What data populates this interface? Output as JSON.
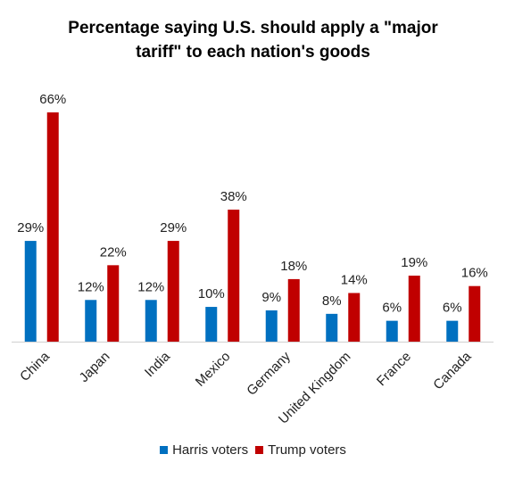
{
  "chart_data": {
    "type": "bar",
    "title_lines": [
      "Percentage saying U.S. should apply a \"major",
      "tariff\" to each nation's goods"
    ],
    "categories": [
      "China",
      "Japan",
      "India",
      "Mexico",
      "Germany",
      "United Kingdom",
      "France",
      "Canada"
    ],
    "series": [
      {
        "name": "Harris voters",
        "color": "#0070C0",
        "values": [
          29,
          12,
          12,
          10,
          9,
          8,
          6,
          6
        ]
      },
      {
        "name": "Trump voters",
        "color": "#C00000",
        "values": [
          66,
          22,
          29,
          38,
          18,
          14,
          19,
          16
        ]
      }
    ],
    "value_suffix": "%",
    "ylim": [
      0,
      66
    ],
    "grid": false,
    "legend_position": "bottom"
  }
}
